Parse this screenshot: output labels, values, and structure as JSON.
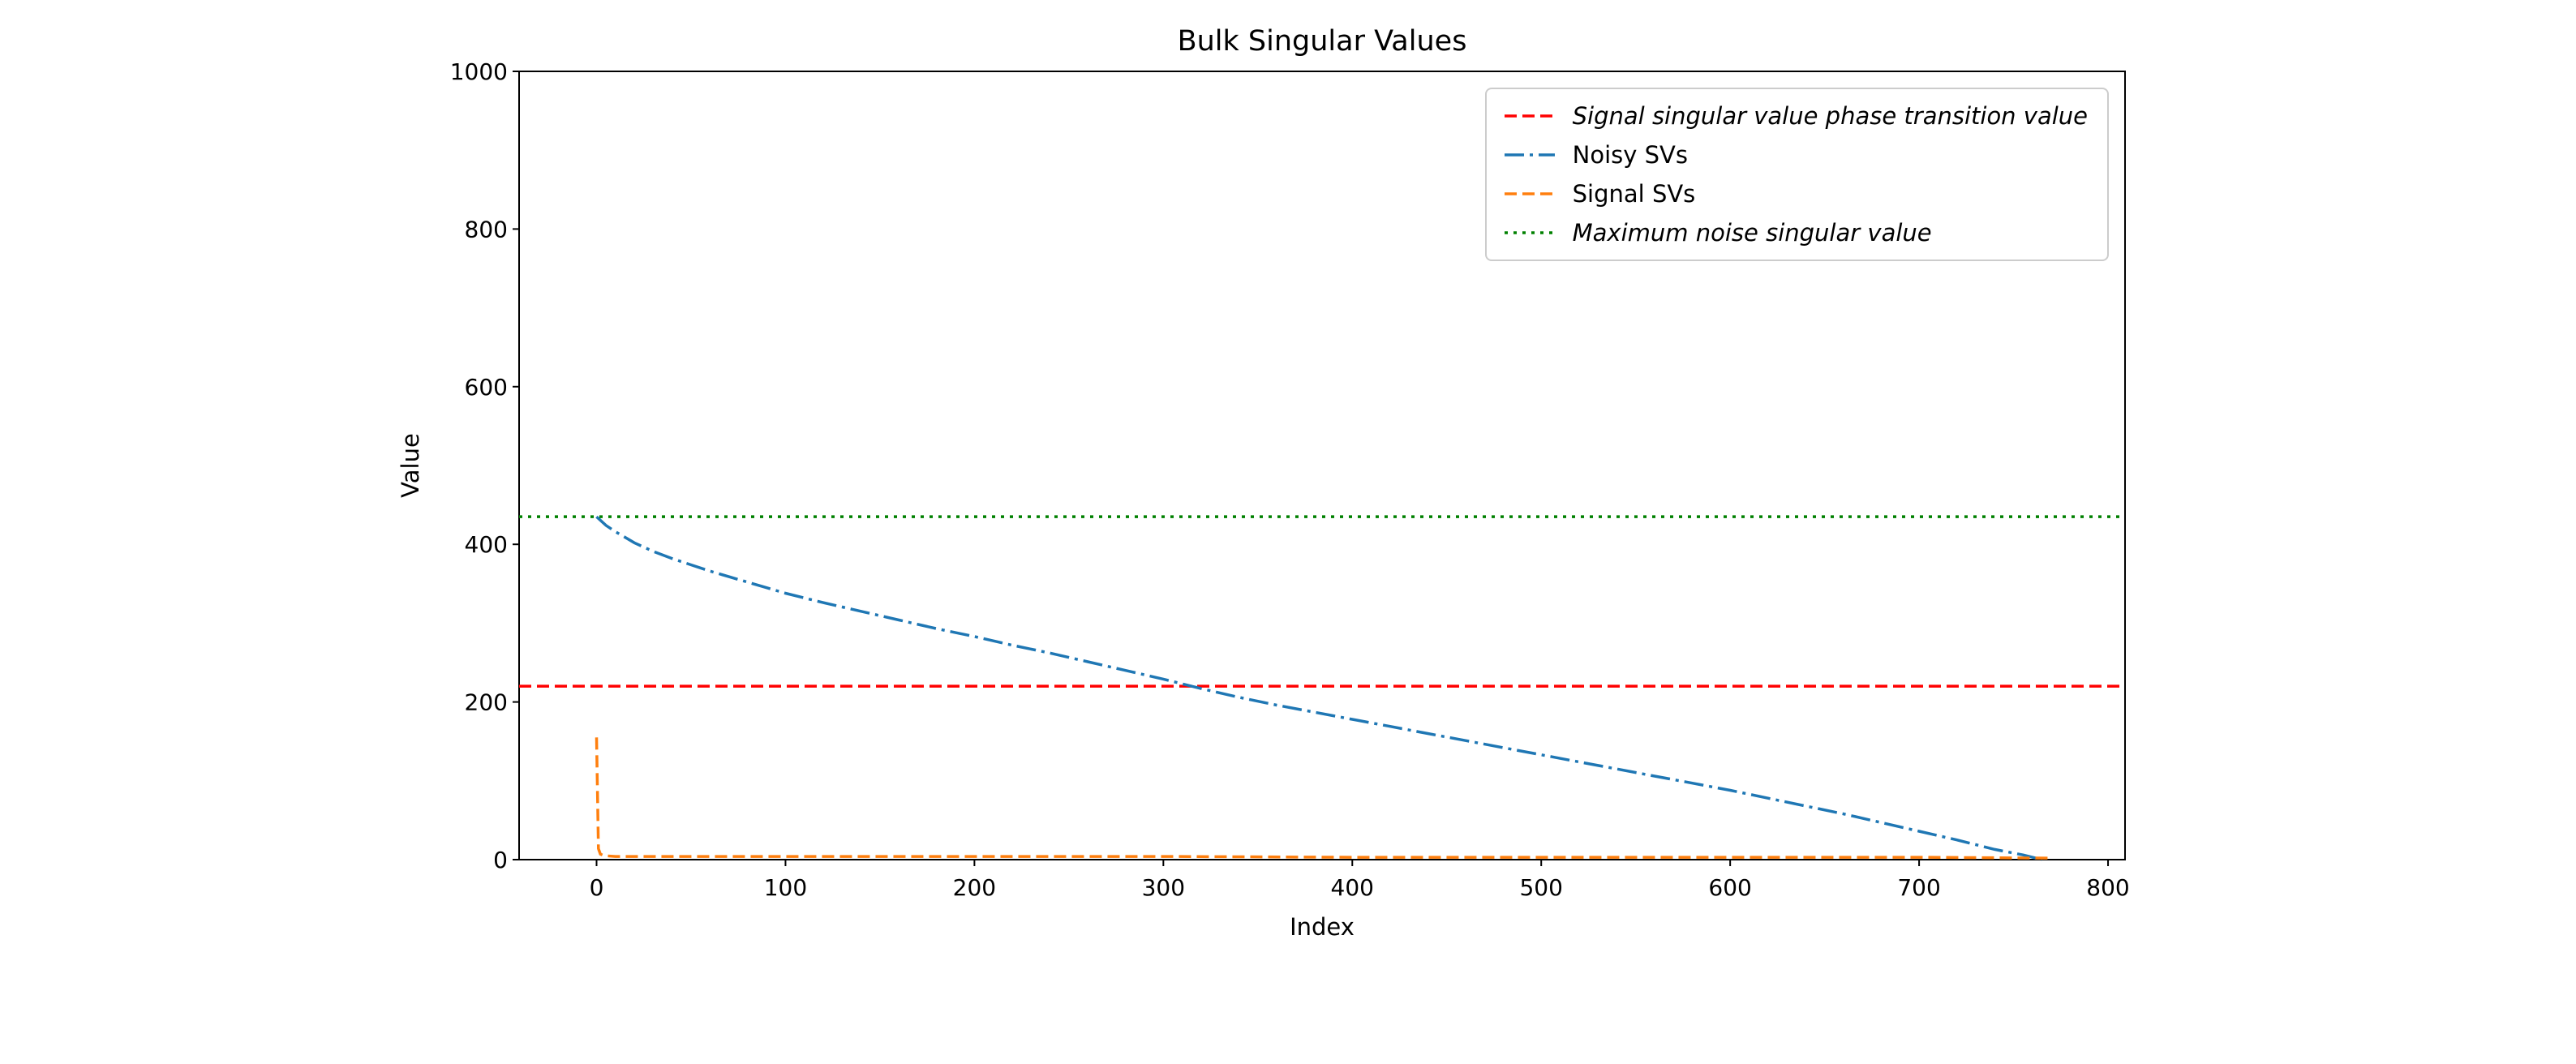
{
  "figure": {
    "background": "#ffffff"
  },
  "chart_data": {
    "type": "line",
    "title": "Bulk Singular Values",
    "xlabel": "Index",
    "ylabel": "Value",
    "xlim": [
      -41,
      809
    ],
    "ylim": [
      0,
      1000
    ],
    "xticks": [
      0,
      100,
      200,
      300,
      400,
      500,
      600,
      700,
      800
    ],
    "yticks": [
      0,
      200,
      400,
      600,
      800,
      1000
    ],
    "grid": false,
    "legend_position": "upper right",
    "legend_border_color": "#cccccc",
    "series": [
      {
        "name": "Signal singular value phase transition value",
        "type": "hline",
        "y": 220,
        "color": "#ff0000",
        "linestyle": "dashed",
        "italic": true
      },
      {
        "name": "Noisy SVs",
        "type": "line",
        "color": "#1f77b4",
        "linestyle": "dashdot",
        "italic": false,
        "points": [
          [
            0,
            435
          ],
          [
            5,
            424
          ],
          [
            10,
            416
          ],
          [
            20,
            402
          ],
          [
            30,
            391
          ],
          [
            40,
            382
          ],
          [
            50,
            374
          ],
          [
            60,
            366
          ],
          [
            70,
            359
          ],
          [
            80,
            352
          ],
          [
            90,
            345
          ],
          [
            100,
            338
          ],
          [
            120,
            326
          ],
          [
            140,
            315
          ],
          [
            160,
            304
          ],
          [
            180,
            293
          ],
          [
            200,
            283
          ],
          [
            220,
            272
          ],
          [
            240,
            262
          ],
          [
            260,
            251
          ],
          [
            280,
            240
          ],
          [
            300,
            229
          ],
          [
            320,
            217
          ],
          [
            340,
            206
          ],
          [
            360,
            196
          ],
          [
            380,
            187
          ],
          [
            400,
            178
          ],
          [
            420,
            169
          ],
          [
            440,
            160
          ],
          [
            460,
            151
          ],
          [
            480,
            142
          ],
          [
            500,
            133
          ],
          [
            520,
            124
          ],
          [
            540,
            115
          ],
          [
            560,
            106
          ],
          [
            580,
            97
          ],
          [
            600,
            88
          ],
          [
            620,
            78
          ],
          [
            640,
            68
          ],
          [
            660,
            58
          ],
          [
            680,
            47
          ],
          [
            700,
            36
          ],
          [
            720,
            25
          ],
          [
            740,
            13
          ],
          [
            755,
            6
          ],
          [
            765,
            0
          ]
        ]
      },
      {
        "name": "Signal SVs",
        "type": "line",
        "color": "#ff7f0e",
        "linestyle": "dashed",
        "italic": false,
        "points": [
          [
            0,
            155
          ],
          [
            1,
            14
          ],
          [
            2,
            7
          ],
          [
            4,
            5
          ],
          [
            10,
            4
          ],
          [
            50,
            4
          ],
          [
            100,
            4
          ],
          [
            200,
            4
          ],
          [
            300,
            4
          ],
          [
            400,
            3
          ],
          [
            500,
            3
          ],
          [
            600,
            3
          ],
          [
            700,
            3
          ],
          [
            768,
            2
          ]
        ]
      },
      {
        "name": "Maximum noise singular value",
        "type": "hline",
        "y": 435,
        "color": "#008000",
        "linestyle": "dotted",
        "italic": true
      }
    ]
  }
}
